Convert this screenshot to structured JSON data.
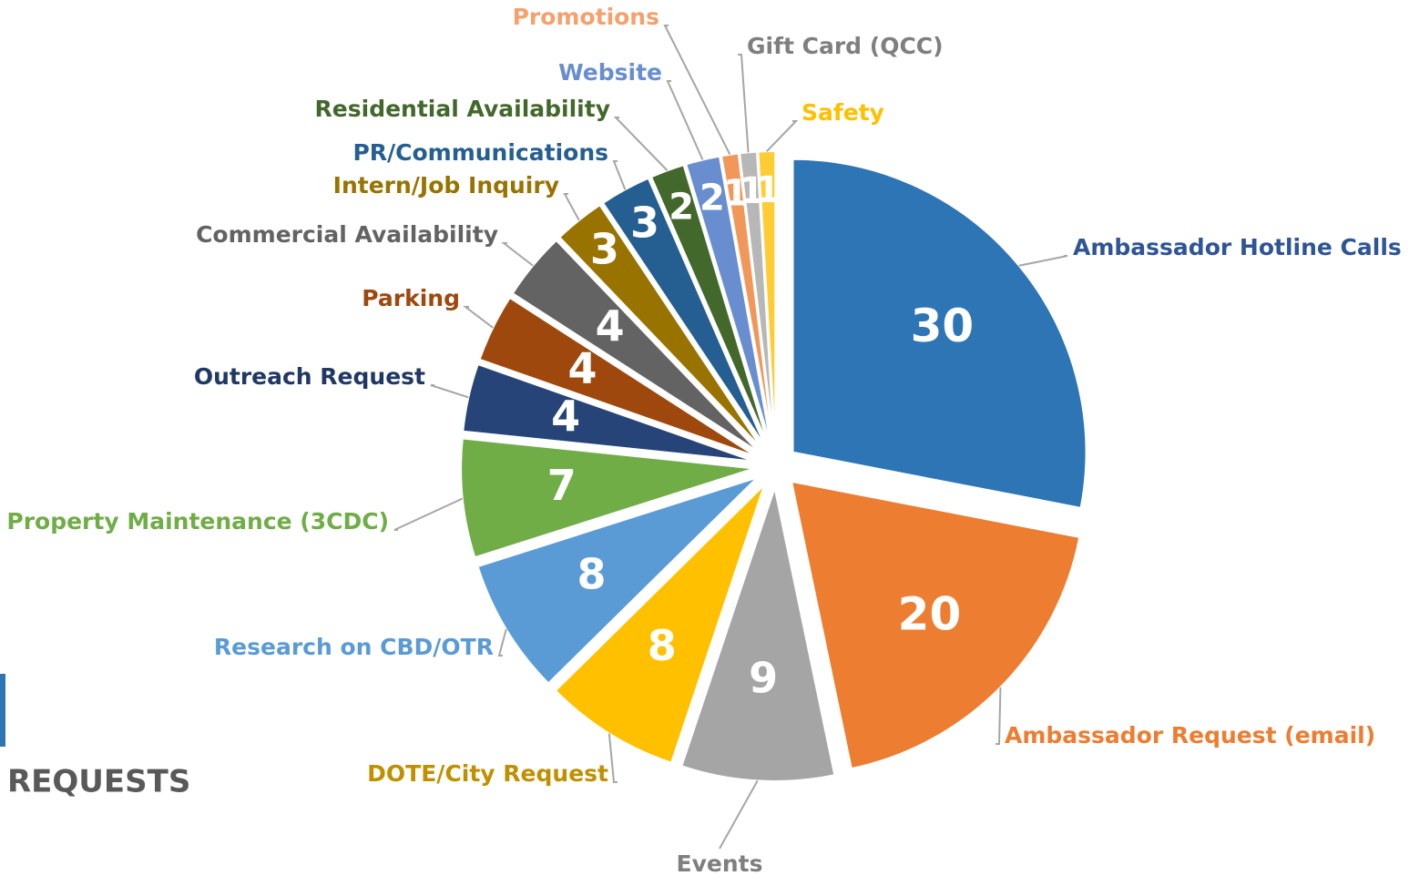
{
  "chart_data": {
    "type": "pie",
    "title": "REQUESTS",
    "categories": [
      "Ambassador Hotline Calls",
      "Ambassador Request (email)",
      "Events",
      "DOTE/City Request",
      "Research on CBD/OTR",
      "Property Maintenance (3CDC)",
      "Outreach Request",
      "Parking",
      "Commercial Availability",
      "Intern/Job Inquiry",
      "PR/Communications",
      "Residential Availability",
      "Website",
      "Promotions",
      "Gift Card (QCC)",
      "Safety"
    ],
    "values": [
      30,
      20,
      9,
      8,
      8,
      7,
      4,
      4,
      4,
      3,
      3,
      2,
      2,
      1,
      1,
      1
    ],
    "colors": [
      "#2e75b6",
      "#ed7d31",
      "#a5a5a5",
      "#ffc000",
      "#5b9bd5",
      "#70ad47",
      "#264478",
      "#9e480e",
      "#636363",
      "#997300",
      "#255e91",
      "#43682b",
      "#698ed0",
      "#f1975a",
      "#b7b7b7",
      "#ffcd33"
    ],
    "label_colors": [
      "#2f5597",
      "#ed7d31",
      "#7f7f7f",
      "#bf9000",
      "#5b9bd5",
      "#70ad47",
      "#203864",
      "#9e480e",
      "#636363",
      "#997300",
      "#255e91",
      "#43682b",
      "#698ed0",
      "#f4a16b",
      "#7f7f7f",
      "#ffc000"
    ]
  }
}
